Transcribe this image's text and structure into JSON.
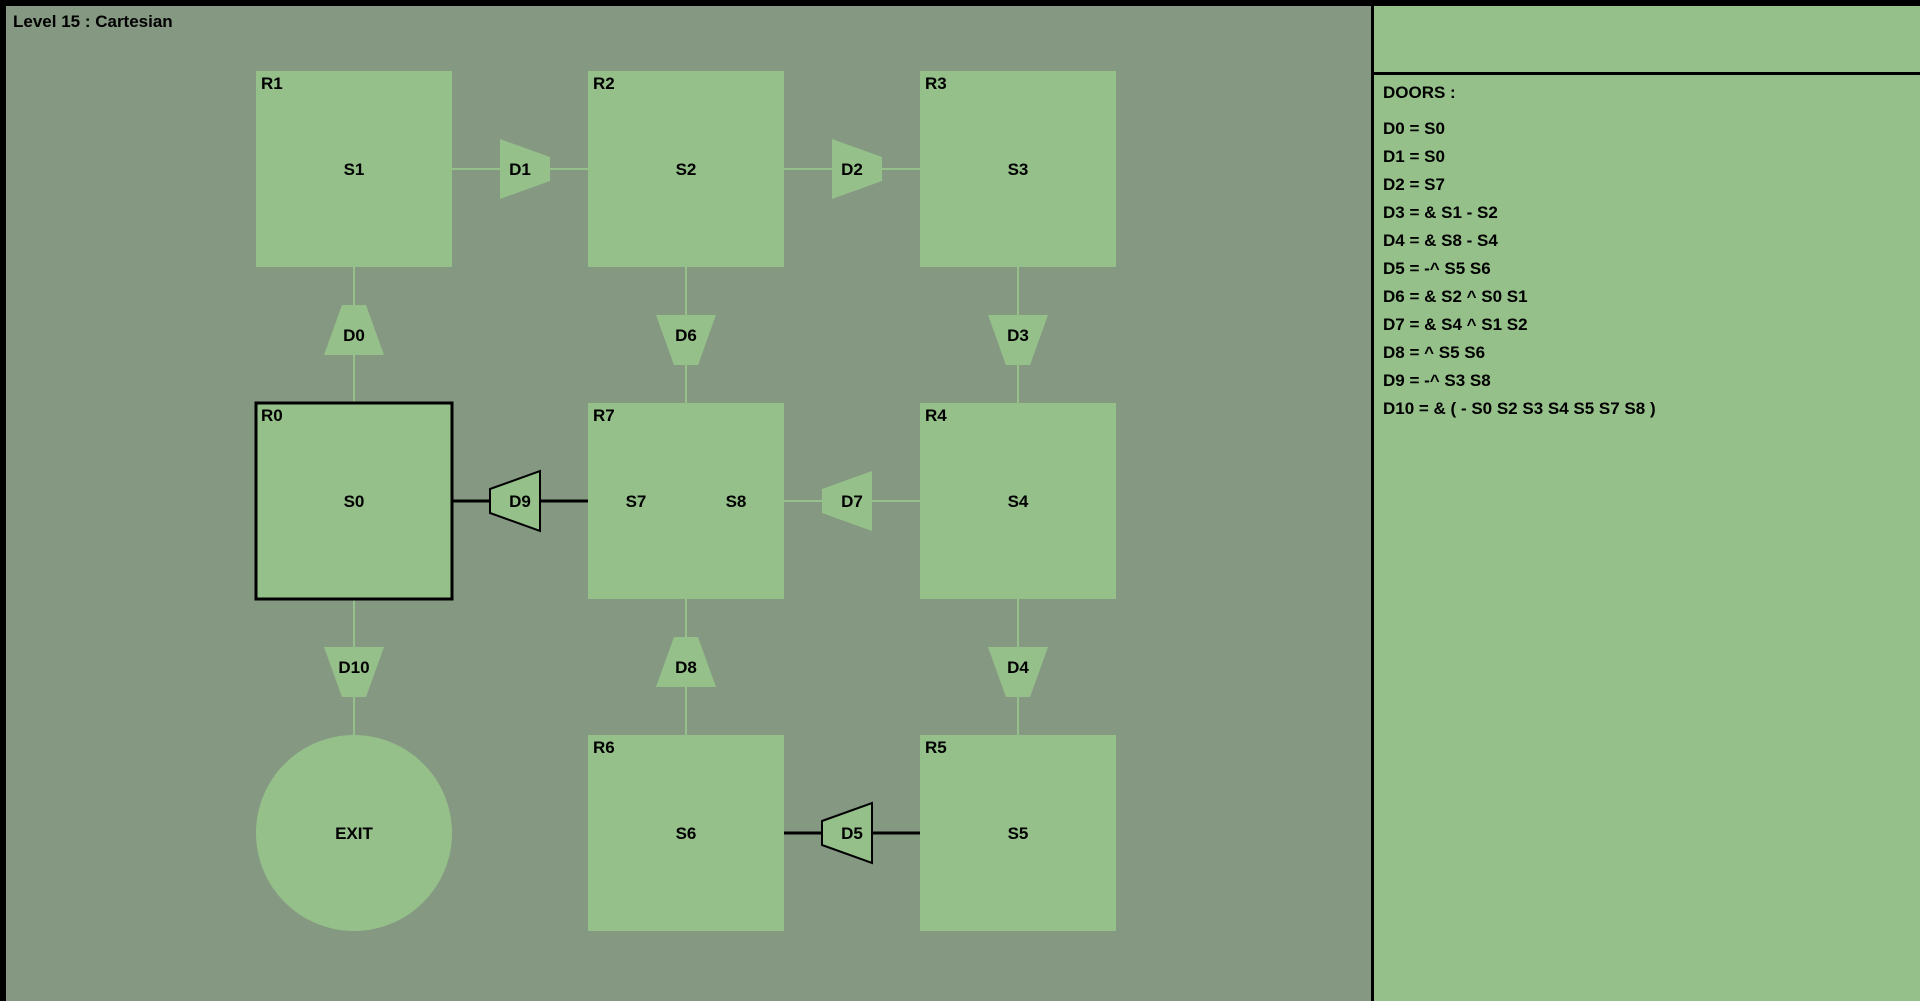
{
  "level_title": "Level 15 : Cartesian",
  "colors": {
    "board_bg": "#859882",
    "room_fill": "#95c08a",
    "panel_bg": "#95c08a",
    "active_outline": "#000000"
  },
  "rooms": [
    {
      "id": "R0",
      "switches": [
        "S0"
      ],
      "active": true
    },
    {
      "id": "R1",
      "switches": [
        "S1"
      ],
      "active": false
    },
    {
      "id": "R2",
      "switches": [
        "S2"
      ],
      "active": false
    },
    {
      "id": "R3",
      "switches": [
        "S3"
      ],
      "active": false
    },
    {
      "id": "R4",
      "switches": [
        "S4"
      ],
      "active": false
    },
    {
      "id": "R5",
      "switches": [
        "S5"
      ],
      "active": false
    },
    {
      "id": "R6",
      "switches": [
        "S6"
      ],
      "active": false
    },
    {
      "id": "R7",
      "switches": [
        "S7",
        "S8"
      ],
      "active": false
    }
  ],
  "exit_label": "EXIT",
  "doors": [
    {
      "id": "D0",
      "between": [
        "R0",
        "R1"
      ],
      "open": false
    },
    {
      "id": "D1",
      "between": [
        "R1",
        "R2"
      ],
      "open": false
    },
    {
      "id": "D2",
      "between": [
        "R2",
        "R3"
      ],
      "open": false
    },
    {
      "id": "D3",
      "between": [
        "R3",
        "R4"
      ],
      "open": false
    },
    {
      "id": "D4",
      "between": [
        "R4",
        "R5"
      ],
      "open": false
    },
    {
      "id": "D5",
      "between": [
        "R5",
        "R6"
      ],
      "open": true
    },
    {
      "id": "D6",
      "between": [
        "R2",
        "R7"
      ],
      "open": false
    },
    {
      "id": "D7",
      "between": [
        "R4",
        "R7"
      ],
      "open": false
    },
    {
      "id": "D8",
      "between": [
        "R6",
        "R7"
      ],
      "open": false
    },
    {
      "id": "D9",
      "between": [
        "R7",
        "R0"
      ],
      "open": true
    },
    {
      "id": "D10",
      "between": [
        "R0",
        "EXIT"
      ],
      "open": false
    }
  ],
  "panel": {
    "heading": "DOORS :",
    "door_rules": [
      "D0 = S0",
      "D1 = S0",
      "D2 = S7",
      "D3 = & S1 - S2",
      "D4 = & S8 - S4",
      "D5 = -^ S5 S6",
      "D6 = & S2 ^ S0 S1",
      "D7 = & S4 ^ S1 S2",
      "D8 = ^ S5 S6",
      "D9 = -^ S3 S8",
      "D10 = & ( - S0 S2 S3 S4 S5 S7 S8 )"
    ]
  }
}
